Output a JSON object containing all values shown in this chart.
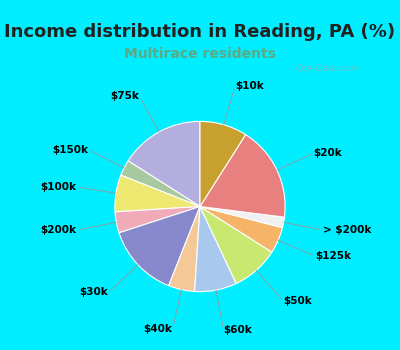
{
  "title": "Income distribution in Reading, PA (%)",
  "subtitle": "Multirace residents",
  "watermark": "City-Data.com",
  "slices": [
    {
      "label": "$75k",
      "value": 16,
      "color": "#b3aedd"
    },
    {
      "label": "$150k",
      "value": 3,
      "color": "#a8c8a0"
    },
    {
      "label": "$100k",
      "value": 7,
      "color": "#eee870"
    },
    {
      "label": "$200k",
      "value": 4,
      "color": "#f0aab8"
    },
    {
      "label": "$30k",
      "value": 14,
      "color": "#8888cc"
    },
    {
      "label": "$40k",
      "value": 5,
      "color": "#f5c898"
    },
    {
      "label": "$60k",
      "value": 8,
      "color": "#a8c8ee"
    },
    {
      "label": "$50k",
      "value": 9,
      "color": "#c8e870"
    },
    {
      "label": "$125k",
      "value": 5,
      "color": "#f5b468"
    },
    {
      "label": "> $200k",
      "value": 2,
      "color": "#f0f0f0"
    },
    {
      "label": "$20k",
      "value": 18,
      "color": "#e88080"
    },
    {
      "label": "$10k",
      "value": 9,
      "color": "#c8a030"
    }
  ],
  "bg_cyan": "#00eeff",
  "bg_chart": "#dff2e8",
  "label_fontsize": 7.5,
  "title_fontsize": 13,
  "subtitle_fontsize": 10,
  "subtitle_color": "#5aaa88"
}
